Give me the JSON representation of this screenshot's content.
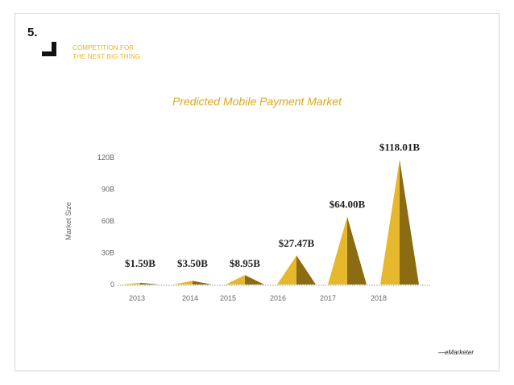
{
  "slide": {
    "number": "5.",
    "section_title_lines": [
      "COMPETITION FOR",
      "THE NEXT BIG THING"
    ],
    "chart_heading": "Predicted Mobile Payment Market",
    "source": "—eMarketer"
  },
  "colors": {
    "accent": "#e2b22a",
    "light_face": "#e6b82d",
    "dark_face": "#8c6c12",
    "axis_text": "#666666",
    "label_text": "#222222"
  },
  "chart_data": {
    "type": "area",
    "title": "Predicted Mobile Payment Market",
    "xlabel": "",
    "ylabel": "Market Size",
    "ylim": [
      0,
      120
    ],
    "yticks": [
      0,
      30,
      60,
      90,
      120
    ],
    "ytick_labels": [
      "0",
      "30B",
      "60B",
      "90B",
      "120B"
    ],
    "categories": [
      "2013",
      "2014",
      "2015",
      "2016",
      "2017",
      "2018"
    ],
    "values": [
      1.59,
      3.5,
      8.95,
      27.47,
      64.0,
      118.01
    ],
    "data_labels": [
      "$1.59B",
      "$3.50B",
      "$8.95B",
      "$27.47B",
      "$64.00B",
      "$118.01B"
    ],
    "grid": false,
    "legend": "none"
  }
}
